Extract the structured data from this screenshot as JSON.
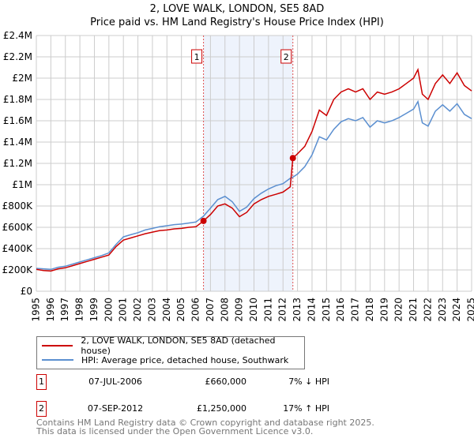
{
  "title_line1": "2, LOVE WALK, LONDON, SE5 8AD",
  "title_line2": "Price paid vs. HM Land Registry's House Price Index (HPI)",
  "chart_data": {
    "type": "line",
    "xlim": [
      1995,
      2025
    ],
    "ylim": [
      0,
      2400000
    ],
    "x_ticks": [
      "1995",
      "1996",
      "1997",
      "1998",
      "1999",
      "2000",
      "2001",
      "2002",
      "2003",
      "2004",
      "2005",
      "2006",
      "2007",
      "2008",
      "2009",
      "2010",
      "2011",
      "2012",
      "2013",
      "2014",
      "2015",
      "2016",
      "2017",
      "2018",
      "2019",
      "2020",
      "2021",
      "2022",
      "2023",
      "2024",
      "2025"
    ],
    "y_ticks": [
      {
        "value": 0,
        "label": "£0"
      },
      {
        "value": 200000,
        "label": "£200K"
      },
      {
        "value": 400000,
        "label": "£400K"
      },
      {
        "value": 600000,
        "label": "£600K"
      },
      {
        "value": 800000,
        "label": "£800K"
      },
      {
        "value": 1000000,
        "label": "£1M"
      },
      {
        "value": 1200000,
        "label": "£1.2M"
      },
      {
        "value": 1400000,
        "label": "£1.4M"
      },
      {
        "value": 1600000,
        "label": "£1.6M"
      },
      {
        "value": 1800000,
        "label": "£1.8M"
      },
      {
        "value": 2000000,
        "label": "£2M"
      },
      {
        "value": 2200000,
        "label": "£2.2M"
      },
      {
        "value": 2400000,
        "label": "£2.4M"
      }
    ],
    "grid": true,
    "series": [
      {
        "name": "2, LOVE WALK, LONDON, SE5 8AD (detached house)",
        "color": "#cc0000",
        "x": [
          1995,
          1995.5,
          1996,
          1996.5,
          1997,
          1997.5,
          1998,
          1998.5,
          1999,
          1999.5,
          2000,
          2000.5,
          2001,
          2001.5,
          2002,
          2002.5,
          2003,
          2003.5,
          2004,
          2004.5,
          2005,
          2005.5,
          2006,
          2006.52,
          2007,
          2007.5,
          2008,
          2008.5,
          2009,
          2009.5,
          2010,
          2010.5,
          2011,
          2011.5,
          2012,
          2012.5,
          2012.68,
          2013,
          2013.5,
          2014,
          2014.5,
          2015,
          2015.5,
          2016,
          2016.5,
          2017,
          2017.5,
          2018,
          2018.5,
          2019,
          2019.5,
          2020,
          2020.5,
          2021,
          2021.3,
          2021.6,
          2022,
          2022.5,
          2023,
          2023.5,
          2024,
          2024.5,
          2025
        ],
        "y": [
          205000,
          195000,
          190000,
          210000,
          220000,
          240000,
          260000,
          280000,
          300000,
          320000,
          340000,
          420000,
          480000,
          500000,
          520000,
          540000,
          555000,
          570000,
          575000,
          585000,
          590000,
          600000,
          605000,
          660000,
          720000,
          800000,
          820000,
          780000,
          700000,
          740000,
          820000,
          860000,
          890000,
          910000,
          930000,
          980000,
          1250000,
          1290000,
          1360000,
          1500000,
          1700000,
          1650000,
          1800000,
          1870000,
          1900000,
          1870000,
          1900000,
          1800000,
          1870000,
          1850000,
          1870000,
          1900000,
          1950000,
          2000000,
          2080000,
          1850000,
          1800000,
          1950000,
          2030000,
          1950000,
          2050000,
          1930000,
          1880000
        ]
      },
      {
        "name": "HPI: Average price, detached house, Southwark",
        "color": "#5b8fd0",
        "x": [
          1995,
          1995.5,
          1996,
          1996.5,
          1997,
          1997.5,
          1998,
          1998.5,
          1999,
          1999.5,
          2000,
          2000.5,
          2001,
          2001.5,
          2002,
          2002.5,
          2003,
          2003.5,
          2004,
          2004.5,
          2005,
          2005.5,
          2006,
          2006.52,
          2007,
          2007.5,
          2008,
          2008.5,
          2009,
          2009.5,
          2010,
          2010.5,
          2011,
          2011.5,
          2012,
          2012.5,
          2012.68,
          2013,
          2013.5,
          2014,
          2014.5,
          2015,
          2015.5,
          2016,
          2016.5,
          2017,
          2017.5,
          2018,
          2018.5,
          2019,
          2019.5,
          2020,
          2020.5,
          2021,
          2021.3,
          2021.6,
          2022,
          2022.5,
          2023,
          2023.5,
          2024,
          2024.5,
          2025
        ],
        "y": [
          215000,
          210000,
          205000,
          225000,
          235000,
          255000,
          275000,
          295000,
          315000,
          335000,
          360000,
          440000,
          510000,
          530000,
          550000,
          575000,
          590000,
          605000,
          615000,
          625000,
          630000,
          640000,
          650000,
          705000,
          780000,
          860000,
          890000,
          840000,
          750000,
          790000,
          870000,
          920000,
          960000,
          990000,
          1010000,
          1060000,
          1070000,
          1100000,
          1170000,
          1280000,
          1450000,
          1420000,
          1520000,
          1590000,
          1620000,
          1600000,
          1630000,
          1540000,
          1600000,
          1580000,
          1600000,
          1630000,
          1670000,
          1710000,
          1780000,
          1580000,
          1550000,
          1690000,
          1750000,
          1690000,
          1760000,
          1660000,
          1620000
        ]
      }
    ],
    "annotations": [
      {
        "label": "1",
        "x": 2006.52,
        "y": 660000
      },
      {
        "label": "2",
        "x": 2012.68,
        "y": 1250000
      }
    ],
    "shaded_range": [
      2006.52,
      2012.68
    ]
  },
  "legend": [
    {
      "label": "2, LOVE WALK, LONDON, SE5 8AD (detached house)",
      "color": "#cc0000"
    },
    {
      "label": "HPI: Average price, detached house, Southwark",
      "color": "#5b8fd0"
    }
  ],
  "events": [
    {
      "num": "1",
      "date": "07-JUL-2006",
      "price": "£660,000",
      "hpi": "7% ↓ HPI"
    },
    {
      "num": "2",
      "date": "07-SEP-2012",
      "price": "£1,250,000",
      "hpi": "17% ↑ HPI"
    }
  ],
  "footer_line1": "Contains HM Land Registry data © Crown copyright and database right 2025.",
  "footer_line2": "This data is licensed under the Open Government Licence v3.0."
}
